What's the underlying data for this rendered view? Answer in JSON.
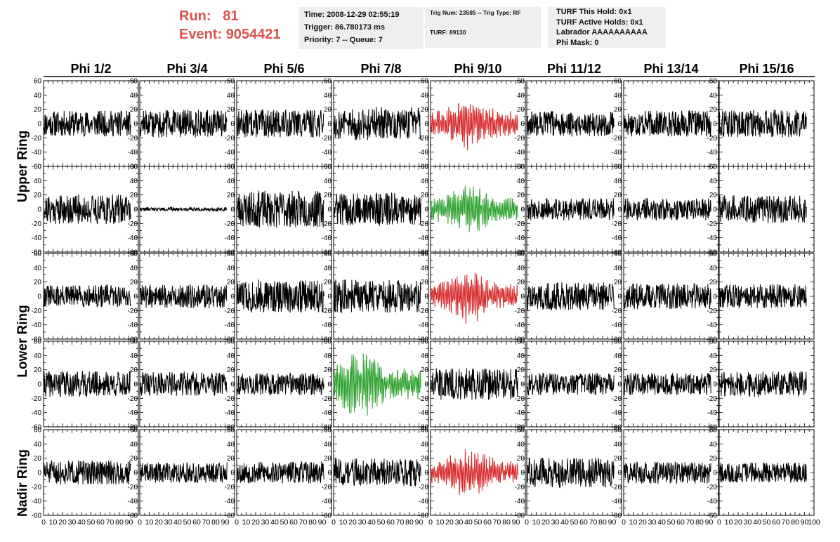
{
  "header": {
    "run_label": "Run:",
    "run_value": "81",
    "event_label": "Event:",
    "event_value": "9054421"
  },
  "info": {
    "time": "Time: 2008-12-29 02:55:19",
    "trigger": "Trigger: 86.780173 ms",
    "priority": "Priority: 7 -- Queue: 7",
    "trig_num": "Trig Num: 23585 -- Trig Type: RF",
    "turf": "TURF: 89130",
    "turf_this_hold": "TURF This Hold: 0x1",
    "turf_active_holds": "TURF Active Holds: 0x1",
    "labrador": "Labrador AAAAAAAAAA",
    "phi_mask": "Phi Mask: 0"
  },
  "colors": {
    "header_text": "#d9534f",
    "trace_default": "#000000",
    "trace_red": "#d62728",
    "trace_green": "#2ca02c",
    "info_box_bg": "#efefef"
  },
  "chart_data": {
    "type": "line",
    "columns": [
      "Phi 1/2",
      "Phi 3/4",
      "Phi 5/6",
      "Phi 7/8",
      "Phi 9/10",
      "Phi 11/12",
      "Phi 13/14",
      "Phi 15/16"
    ],
    "rows": [
      "Upper Ring",
      "Upper Ring",
      "Lower Ring",
      "Lower Ring",
      "Nadir Ring"
    ],
    "row_labels": [
      "Upper Ring",
      "Lower Ring",
      "Nadir Ring"
    ],
    "xlim": [
      0,
      100
    ],
    "ylim": [
      -60,
      60
    ],
    "x_ticks": [
      0,
      10,
      20,
      30,
      40,
      50,
      60,
      70,
      80,
      90,
      100
    ],
    "y_ticks": [
      60,
      40,
      20,
      0,
      -20,
      -40,
      -60
    ],
    "samples_per_trace": 260,
    "x_extent": 92,
    "trace_color": [
      [
        "black",
        "black",
        "black",
        "black",
        "red",
        "black",
        "black",
        "black"
      ],
      [
        "black",
        "black",
        "black",
        "black",
        "green",
        "black",
        "black",
        "black"
      ],
      [
        "black",
        "black",
        "black",
        "black",
        "red",
        "black",
        "black",
        "black"
      ],
      [
        "black",
        "black",
        "black",
        "green",
        "black",
        "black",
        "black",
        "black"
      ],
      [
        "black",
        "black",
        "black",
        "black",
        "red",
        "black",
        "black",
        "black"
      ]
    ],
    "trace_amplitude": [
      [
        14,
        15,
        15,
        18,
        22,
        14,
        14,
        15
      ],
      [
        16,
        2,
        20,
        18,
        20,
        12,
        12,
        15
      ],
      [
        12,
        13,
        18,
        18,
        22,
        15,
        14,
        13
      ],
      [
        14,
        13,
        12,
        28,
        17,
        12,
        12,
        14
      ],
      [
        13,
        11,
        12,
        15,
        20,
        16,
        12,
        11
      ]
    ],
    "trace_seed": [
      [
        11,
        12,
        13,
        14,
        15,
        16,
        17,
        18
      ],
      [
        21,
        22,
        23,
        24,
        25,
        26,
        27,
        28
      ],
      [
        31,
        32,
        33,
        34,
        35,
        36,
        37,
        38
      ],
      [
        41,
        42,
        43,
        44,
        45,
        46,
        47,
        48
      ],
      [
        51,
        52,
        53,
        54,
        55,
        56,
        57,
        58
      ]
    ]
  }
}
